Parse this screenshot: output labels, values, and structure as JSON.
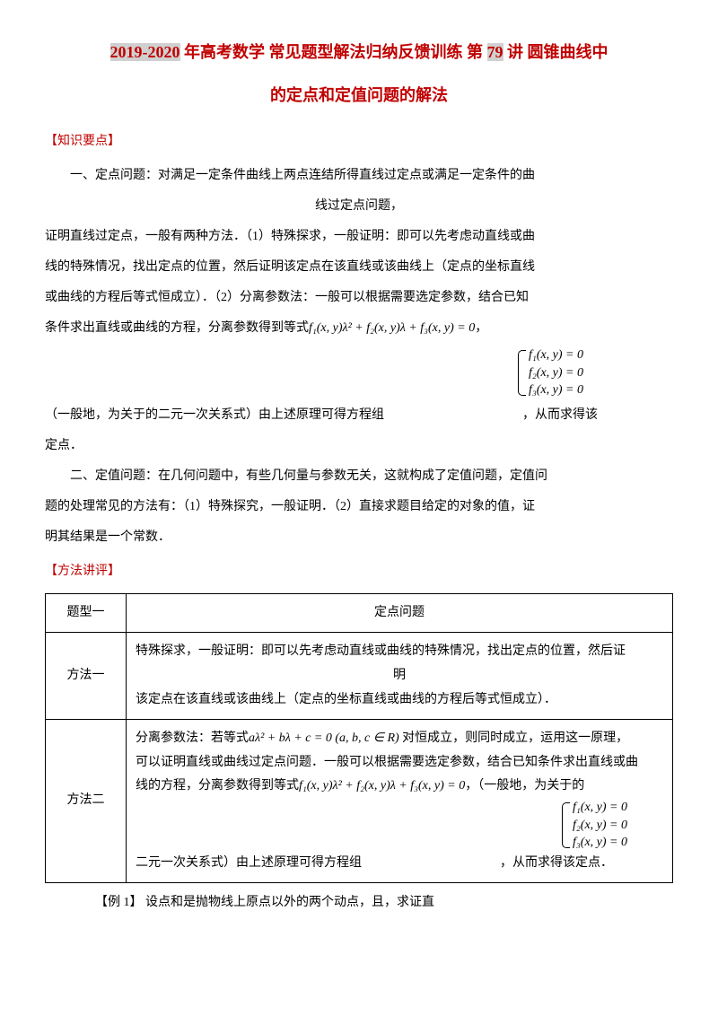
{
  "title": {
    "line1_prefix": "2019-2020",
    "line1_mid": " 年高考数学 常见题型解法归纳反馈训练 第 ",
    "line1_num": "79",
    "line1_suffix": " 讲 圆锥曲线中",
    "line2": "的定点和定值问题的解法"
  },
  "sections": {
    "knowledge_header": "【知识要点】",
    "methods_header": "【方法讲评】"
  },
  "knowledge": {
    "p1": "一、定点问题：对满足一定条件曲线上两点连结所得直线过定点或满足一定条件的曲",
    "p1_center": "线过定点问题，",
    "p2a": "证明直线过定点，一般有两种方法．（1）特殊探求，一般证明：即可以先考虑动直线或曲",
    "p2b": "线的特殊情况，找出定点的位置，然后证明该定点在该直线或该曲线上（定点的坐标直线",
    "p2c": "或曲线的方程后等式恒成立）．（2）分离参数法：一般可以根据需要选定参数，结合已知",
    "p2d_prefix": "条件求出直线或曲线的方程，分离参数得到等式",
    "p2d_suffix": "，",
    "p3_prefix": "（一般地，为关于的二元一次关系式）由上述原理可得方程组",
    "p3_suffix": "，从而求得该",
    "p3_end": "定点．",
    "p4a": "二、定值问题：在几何问题中，有些几何量与参数无关，这就构成了定值问题，定值问",
    "p4b": "题的处理常见的方法有：（1）特殊探究，一般证明．（2）直接求题目给定的对象的值，证",
    "p4c": "明其结果是一个常数．"
  },
  "formulas": {
    "poly": "f₁(x, y)λ² + f₂(x, y)λ + f₃(x, y) = 0",
    "brace1": "f₁(x, y) = 0",
    "brace2": "f₂(x, y) = 0",
    "brace3": "f₃(x, y) = 0",
    "quad": "aλ² + bλ + c = 0 (a, b, c ∈ R)"
  },
  "table": {
    "r1c1": "题型一",
    "r1c2": "定点问题",
    "r2c1": "方法一",
    "r2c2_l1": "特殊探求，一般证明：即可以先考虑动直线或曲线的特殊情况，找出定点的位置，然后证",
    "r2c2_l1b": "明",
    "r2c2_l2": "该定点在该直线或该曲线上（定点的坐标直线或曲线的方程后等式恒成立）．",
    "r3c1": "方法二",
    "r3c2_l1_a": "分离参数法：若等式",
    "r3c2_l1_b": " 对恒成立，则同时成立，运用这一原理，",
    "r3c2_l2": "可以证明直线或曲线过定点问题．一般可以根据需要选定参数，结合已知条件求出直线或曲",
    "r3c2_l3_a": "线的方程，分离参数得到等式",
    "r3c2_l3_b": "，（一般地，为关于的",
    "r3c2_l4_a": "二元一次关系式）由上述原理可得方程组",
    "r3c2_l4_b": "，从而求得该定点．"
  },
  "example": {
    "label": "【例 1】",
    "text": " 设点和是抛物线上原点以外的两个动点，且，求证直"
  },
  "colors": {
    "red": "#c00000",
    "highlight_bg": "#d0d0d0",
    "black": "#000000"
  }
}
